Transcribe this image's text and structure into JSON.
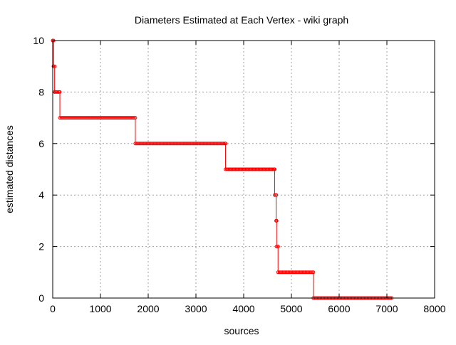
{
  "chart_data": {
    "type": "line",
    "title": "Diameters Estimated at Each Vertex - wiki graph",
    "xlabel": "sources",
    "ylabel": "estimated distances",
    "xlim": [
      0,
      8000
    ],
    "ylim": [
      0,
      10
    ],
    "x_ticks": [
      0,
      1000,
      2000,
      3000,
      4000,
      5000,
      6000,
      7000,
      8000
    ],
    "y_ticks": [
      0,
      2,
      4,
      6,
      8,
      10
    ],
    "x_tick_labels": [
      "0",
      "1000",
      "2000",
      "3000",
      "4000",
      "5000",
      "6000",
      "7000",
      "8000"
    ],
    "y_tick_labels": [
      "0",
      "2",
      "4",
      "6",
      "8",
      "10"
    ],
    "grid": true,
    "legend": "none",
    "series": [
      {
        "color": "#ff0000",
        "marker": "circle",
        "points": [
          [
            0,
            10
          ],
          [
            15,
            10
          ],
          [
            15,
            9
          ],
          [
            40,
            9
          ],
          [
            40,
            8
          ],
          [
            150,
            8
          ],
          [
            150,
            7
          ],
          [
            1730,
            7
          ],
          [
            1730,
            6
          ],
          [
            3620,
            6
          ],
          [
            3620,
            5
          ],
          [
            4650,
            5
          ],
          [
            4650,
            4
          ],
          [
            4680,
            4
          ],
          [
            4680,
            3
          ],
          [
            4690,
            3
          ],
          [
            4690,
            2
          ],
          [
            4720,
            2
          ],
          [
            4720,
            1
          ],
          [
            5460,
            1
          ],
          [
            5460,
            0
          ],
          [
            7100,
            0
          ]
        ]
      }
    ]
  }
}
